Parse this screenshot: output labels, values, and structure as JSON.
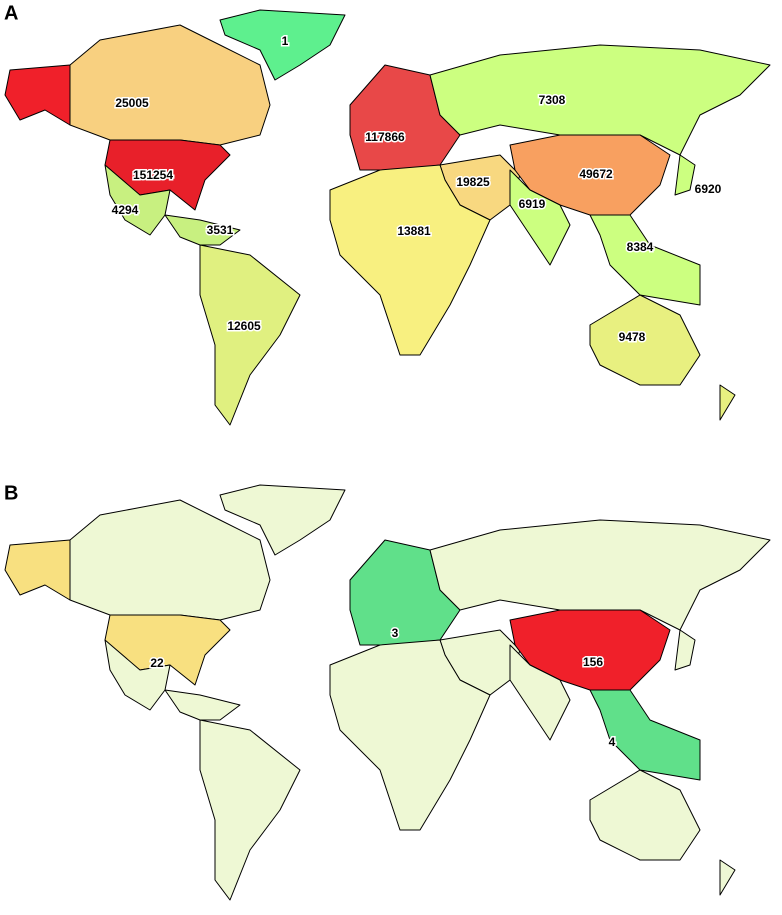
{
  "panels": [
    {
      "label": "A",
      "base_color": "#e8f080",
      "regions": [
        {
          "color": "#5ef08e",
          "value": 1
        },
        {
          "color": "#f0202a"
        },
        {
          "color": "#f8d080",
          "value": 25005
        },
        {
          "color": "#e8202a",
          "value": 151254
        },
        {
          "color": "#c8f080",
          "value": 4294
        },
        {
          "color": "#c8f080",
          "value": 3531
        },
        {
          "color": "#e0f080",
          "value": 12605
        },
        {
          "color": "#e84848",
          "value": 117866
        },
        {
          "color": "#ccff80",
          "value": 7308
        },
        {
          "color": "#f8a060",
          "value": 49672
        },
        {
          "color": "#ccff80",
          "value": 6920
        },
        {
          "color": "#f8d880",
          "value": 19825
        },
        {
          "color": "#ccff80",
          "value": 6919
        },
        {
          "color": "#f8f080",
          "value": 13881
        },
        {
          "color": "#ccff80",
          "value": 8384
        },
        {
          "color": "#e8f080",
          "value": 9478
        }
      ]
    },
    {
      "label": "B",
      "base_color": "#eef8d4",
      "regions": [
        {
          "color": "#f8e080"
        },
        {
          "color": "#f8e080",
          "value": 22
        },
        {
          "color": "#60e08a",
          "value": 3
        },
        {
          "color": "#f0202a",
          "value": 156
        },
        {
          "color": "#60e08a",
          "value": 4
        }
      ]
    }
  ]
}
